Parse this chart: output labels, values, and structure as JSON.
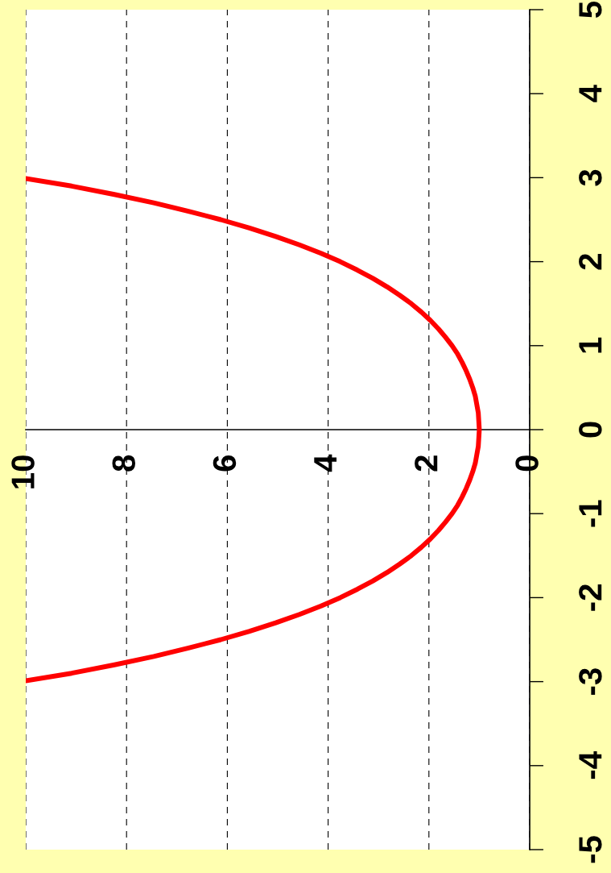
{
  "chart_data": {
    "type": "line",
    "xlim": [
      10,
      0
    ],
    "xticks": [
      0,
      2,
      4,
      6,
      8,
      10
    ],
    "ylim": [
      -5,
      5
    ],
    "yticks": [
      -5,
      -4,
      -3,
      -2,
      -1,
      0,
      1,
      2,
      3,
      4,
      5
    ],
    "grid": "x",
    "marker": "none",
    "line_style": "solid",
    "series": [
      {
        "color": "#ff0000",
        "x": [
          10,
          9.09,
          8.24,
          7.46,
          6.77,
          6.13,
          5.56,
          5.04,
          4.57,
          4.14,
          3.76,
          3.42,
          3.11,
          2.83,
          2.58,
          2.35,
          2.15,
          1.97,
          1.81,
          1.67,
          1.54,
          1.43,
          1.34,
          1.26,
          1.19,
          1.13,
          1.08,
          1.05,
          1.02,
          1.01,
          1.0,
          1.01,
          1.02,
          1.05,
          1.08,
          1.13,
          1.19,
          1.26,
          1.34,
          1.43,
          1.54,
          1.67,
          1.81,
          1.97,
          2.15,
          2.35,
          2.58,
          2.83,
          3.11,
          3.42,
          3.76,
          4.14,
          4.57,
          5.04,
          5.56,
          6.13,
          6.77,
          7.46,
          8.24,
          9.09,
          10
        ],
        "values": [
          -2.99,
          -2.9,
          -2.8,
          -2.7,
          -2.6,
          -2.5,
          -2.4,
          -2.3,
          -2.2,
          -2.1,
          -2.0,
          -1.9,
          -1.8,
          -1.7,
          -1.6,
          -1.5,
          -1.4,
          -1.3,
          -1.2,
          -1.1,
          -1.0,
          -0.9,
          -0.8,
          -0.7,
          -0.6,
          -0.5,
          -0.4,
          -0.3,
          -0.2,
          -0.1,
          0,
          0.1,
          0.2,
          0.3,
          0.4,
          0.5,
          0.6,
          0.7,
          0.8,
          0.9,
          1.0,
          1.1,
          1.2,
          1.3,
          1.4,
          1.5,
          1.6,
          1.7,
          1.8,
          1.9,
          2.0,
          2.1,
          2.2,
          2.3,
          2.4,
          2.5,
          2.6,
          2.7,
          2.8,
          2.9,
          2.99
        ]
      }
    ]
  }
}
